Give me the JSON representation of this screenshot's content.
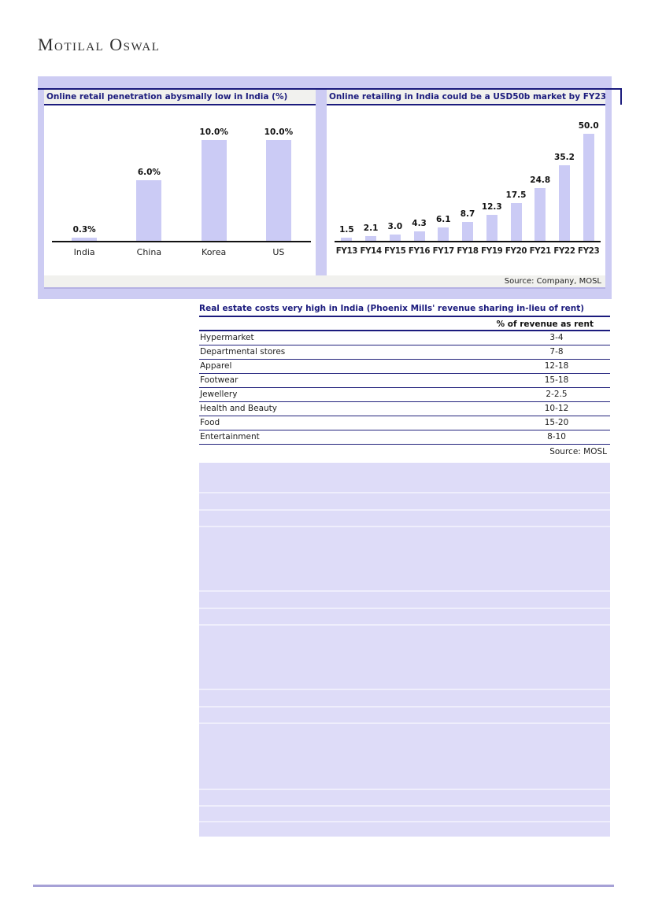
{
  "brand": {
    "name": "Motilal Oswal"
  },
  "exhibits": {
    "source_note": "Source:  Company, MOSL"
  },
  "chart_data": [
    {
      "type": "bar",
      "title": "Online retail penetration abysmally low in India (%)",
      "categories": [
        "India",
        "China",
        "Korea",
        "US"
      ],
      "values": [
        0.3,
        6.0,
        10.0,
        10.0
      ],
      "value_labels": [
        "0.3%",
        "6.0%",
        "10.0%",
        "10.0%"
      ],
      "xlabel": "",
      "ylabel": "",
      "ylim": [
        0,
        13.5
      ],
      "grid": false,
      "legend": "none",
      "bar_color": "#cbcbf5"
    },
    {
      "type": "bar",
      "title": "Online retailing in India could be a USD50b market by FY23",
      "categories": [
        "FY13",
        "FY14",
        "FY15",
        "FY16",
        "FY17",
        "FY18",
        "FY19",
        "FY20",
        "FY21",
        "FY22",
        "FY23"
      ],
      "values": [
        1.5,
        2.1,
        3.0,
        4.3,
        6.1,
        8.7,
        12.3,
        17.5,
        24.8,
        35.2,
        50.0
      ],
      "value_labels": [
        "1.5",
        "2.1",
        "3.0",
        "4.3",
        "6.1",
        "8.7",
        "12.3",
        "17.5",
        "24.8",
        "35.2",
        "50.0"
      ],
      "xlabel": "",
      "ylabel": "",
      "ylim": [
        0,
        63
      ],
      "grid": false,
      "legend": "none",
      "bar_color": "#cbcbf5"
    }
  ],
  "table": {
    "title": "Real estate costs very high in India (Phoenix Mills' revenue sharing in-lieu of rent)",
    "value_header": "% of revenue as rent",
    "rows": [
      {
        "label": "Hypermarket",
        "value": "3-4"
      },
      {
        "label": "Departmental stores",
        "value": "7-8"
      },
      {
        "label": "Apparel",
        "value": "12-18"
      },
      {
        "label": "Footwear",
        "value": "15-18"
      },
      {
        "label": "Jewellery",
        "value": "2-2.5"
      },
      {
        "label": "Health and Beauty",
        "value": "10-12"
      },
      {
        "label": "Food",
        "value": "15-20"
      },
      {
        "label": "Entertainment",
        "value": "8-10"
      }
    ],
    "source": "Source: MOSL"
  },
  "colors": {
    "accent_navy": "#1b1b7d",
    "bar_fill": "#cbcbf5",
    "panel_lavender": "#cdccf3",
    "title_bar_bg": "#f1f1ee",
    "empty_grid_bg": "#dedcf8",
    "footer_line": "#a6a1d6"
  }
}
